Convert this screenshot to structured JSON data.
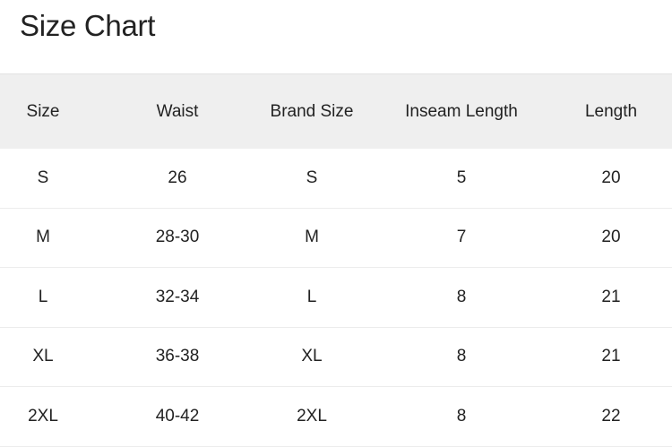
{
  "title": "Size Chart",
  "table": {
    "headers": [
      "Size",
      "Waist",
      "Brand Size",
      "Inseam Length",
      "Length"
    ],
    "rows": [
      [
        "S",
        "26",
        "S",
        "5",
        "20"
      ],
      [
        "M",
        "28-30",
        "M",
        "7",
        "20"
      ],
      [
        "L",
        "32-34",
        "L",
        "8",
        "21"
      ],
      [
        "XL",
        "36-38",
        "XL",
        "8",
        "21"
      ],
      [
        "2XL",
        "40-42",
        "2XL",
        "8",
        "22"
      ]
    ]
  }
}
